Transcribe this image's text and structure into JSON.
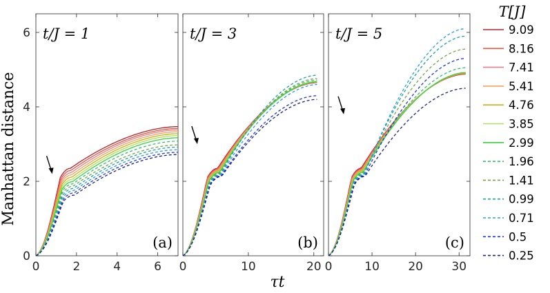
{
  "chart_data": {
    "type": "line",
    "ylabel": "Manhattan distance",
    "xlabel": "τt",
    "ylim": [
      0,
      6.5
    ],
    "yticks": [
      0,
      2,
      4,
      6
    ],
    "legend": {
      "title": "T[J]",
      "placement": "right",
      "entries": [
        {
          "label": "9.09",
          "color": "#b5202f",
          "style": "solid"
        },
        {
          "label": "8.16",
          "color": "#e8573b",
          "style": "solid"
        },
        {
          "label": "7.41",
          "color": "#f47a8c",
          "style": "solid"
        },
        {
          "label": "5.41",
          "color": "#f7a35c",
          "style": "solid"
        },
        {
          "label": "4.76",
          "color": "#c5b21c",
          "style": "solid"
        },
        {
          "label": "3.85",
          "color": "#aee05d",
          "style": "solid"
        },
        {
          "label": "2.99",
          "color": "#35d23a",
          "style": "solid"
        },
        {
          "label": "1.96",
          "color": "#2fc06a",
          "style": "dashed"
        },
        {
          "label": "1.41",
          "color": "#78a14a",
          "style": "dashed"
        },
        {
          "label": "0.99",
          "color": "#1aa1a1",
          "style": "dashed"
        },
        {
          "label": "0.71",
          "color": "#2b9be0",
          "style": "dashed"
        },
        {
          "label": "0.5",
          "color": "#1f33e0",
          "style": "dashed"
        },
        {
          "label": "0.25",
          "color": "#1a237e",
          "style": "dashed"
        }
      ]
    },
    "panels": [
      {
        "title": "t/J = 1",
        "tag": "(a)",
        "xlim": [
          0,
          7
        ],
        "xticks": [
          0,
          2,
          4,
          6
        ],
        "arrow": [
          0.8,
          2.2
        ],
        "plateau_x": 1.7,
        "series_end": [
          3.47,
          3.42,
          3.38,
          3.33,
          3.28,
          3.23,
          3.17,
          3.08,
          2.98,
          2.92,
          2.85,
          2.78,
          2.72
        ],
        "x_end": 7
      },
      {
        "title": "t/J = 3",
        "tag": "(b)",
        "xlim": [
          0,
          21.5
        ],
        "xticks": [
          0,
          10,
          20
        ],
        "arrow": [
          2.2,
          3.0
        ],
        "plateau_x": 5.3,
        "series_end": [
          4.65,
          4.66,
          4.66,
          4.67,
          4.67,
          4.68,
          4.68,
          4.72,
          4.76,
          4.85,
          4.6,
          4.3,
          4.2
        ],
        "x_end": 20.5
      },
      {
        "title": "t/J = 5",
        "tag": "(c)",
        "xlim": [
          0,
          32.5
        ],
        "xticks": [
          0,
          10,
          20,
          30
        ],
        "arrow": [
          3.5,
          3.8
        ],
        "plateau_x": 7.5,
        "series_end": [
          4.88,
          4.89,
          4.9,
          4.9,
          4.91,
          4.92,
          4.92,
          5.05,
          5.55,
          5.9,
          6.1,
          5.3,
          4.5
        ],
        "x_end": 31.5
      }
    ]
  }
}
